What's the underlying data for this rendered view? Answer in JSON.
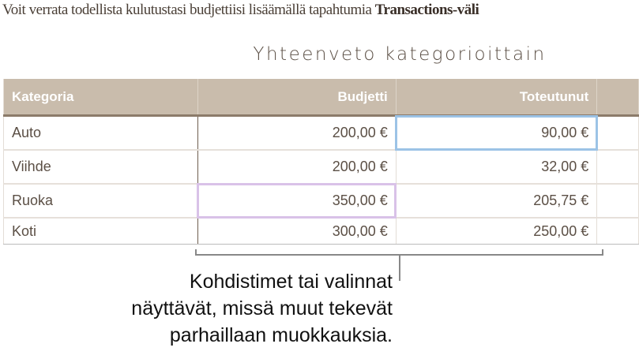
{
  "intro": {
    "text": "Voit verrata todellista kulutustasi budjettiisi lisäämällä tapahtumia ",
    "bold": "Transactions-väli"
  },
  "table": {
    "title": "Yhteenveto kategorioittain",
    "headers": [
      "Kategoria",
      "Budjetti",
      "Toteutunut",
      ""
    ],
    "rows": [
      [
        "Auto",
        "200,00 €",
        "90,00 €"
      ],
      [
        "Viihde",
        "200,00 €",
        "32,00 €"
      ],
      [
        "Ruoka",
        "350,00 €",
        "205,75 €"
      ],
      [
        "Koti",
        "300,00 €",
        "250,00 €"
      ]
    ],
    "cursor_colors": {
      "blue": "#9cc3e6",
      "purple": "#d9c2e8"
    }
  },
  "caption": {
    "lines": [
      "Kohdistimet tai valinnat",
      "näyttävät, missä muut tekevät",
      "parhaillaan muokkauksia."
    ]
  }
}
